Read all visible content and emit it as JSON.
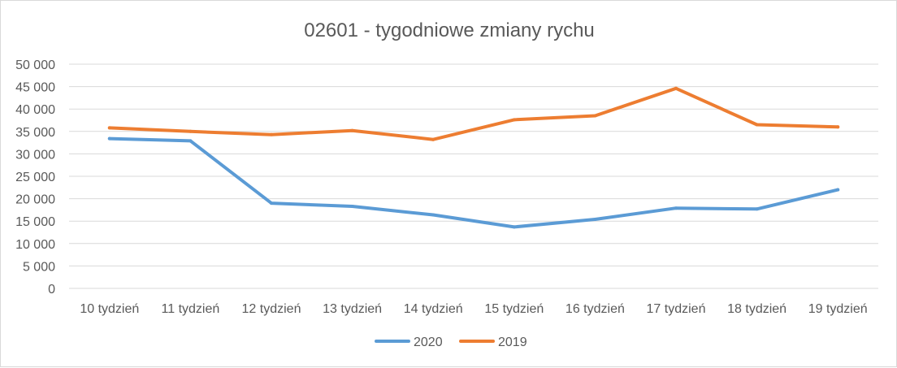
{
  "chart_data": {
    "type": "line",
    "title": "02601 - tygodniowe zmiany rychu",
    "categories": [
      "10 tydzień",
      "11 tydzień",
      "12 tydzień",
      "13 tydzień",
      "14 tydzień",
      "15 tydzień",
      "16 tydzień",
      "17 tydzień",
      "18 tydzień",
      "19 tydzień"
    ],
    "series": [
      {
        "name": "2020",
        "color": "#5b9bd5",
        "values": [
          33400,
          32900,
          19000,
          18300,
          16400,
          13700,
          15400,
          17900,
          17700,
          22000
        ]
      },
      {
        "name": "2019",
        "color": "#ed7d31",
        "values": [
          35800,
          35000,
          34300,
          35200,
          33200,
          37600,
          38500,
          44600,
          36500,
          36000
        ]
      }
    ],
    "yticks": [
      "0",
      "5 000",
      "10 000",
      "15 000",
      "20 000",
      "25 000",
      "30 000",
      "35 000",
      "40 000",
      "45 000",
      "50 000"
    ],
    "ylim": [
      0,
      50000
    ],
    "grid": true,
    "legend_position": "bottom"
  }
}
